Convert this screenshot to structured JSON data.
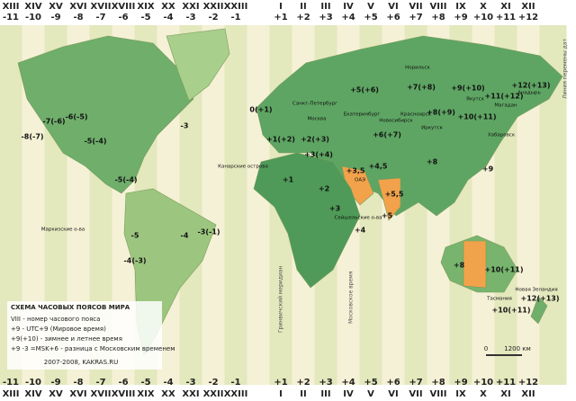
{
  "zones": [
    {
      "roman": "XIII",
      "offset": "-11"
    },
    {
      "roman": "XIV",
      "offset": "-10"
    },
    {
      "roman": "XV",
      "offset": "-9"
    },
    {
      "roman": "XVI",
      "offset": "-8"
    },
    {
      "roman": "XVII",
      "offset": "-7"
    },
    {
      "roman": "XVIII",
      "offset": "-6"
    },
    {
      "roman": "XIX",
      "offset": "-5"
    },
    {
      "roman": "XX",
      "offset": "-4"
    },
    {
      "roman": "XXI",
      "offset": "-3"
    },
    {
      "roman": "XXII",
      "offset": "-2"
    },
    {
      "roman": "XXIII",
      "offset": "-1"
    },
    {
      "roman": null,
      "offset": null
    },
    {
      "roman": "I",
      "offset": "+1"
    },
    {
      "roman": "II",
      "offset": "+2"
    },
    {
      "roman": "III",
      "offset": "+3"
    },
    {
      "roman": "IV",
      "offset": "+4"
    },
    {
      "roman": "V",
      "offset": "+5"
    },
    {
      "roman": "VI",
      "offset": "+6"
    },
    {
      "roman": "VII",
      "offset": "+7"
    },
    {
      "roman": "VIII",
      "offset": "+8"
    },
    {
      "roman": "IX",
      "offset": "+9"
    },
    {
      "roman": "X",
      "offset": "+10"
    },
    {
      "roman": "XI",
      "offset": "+11"
    },
    {
      "roman": "XII",
      "offset": "+12"
    }
  ],
  "map_labels": [
    "-7(-6)",
    "-6(-5)",
    "-8(-7)",
    "-5(-4)",
    "-3",
    "-5(-4)",
    "-5",
    "-4(-3)",
    "-3(-1)",
    "-4",
    "0(+1)",
    "+1(+2)",
    "+2(+3)",
    "+3(+4)",
    "+1",
    "+2",
    "+3",
    "+4",
    "+3,5",
    "+4,5",
    "+5,5",
    "+5",
    "+5(+6)",
    "+6(+7)",
    "+7(+8)",
    "+8(+9)",
    "+9(+10)",
    "+10(+11)",
    "+11(+12)",
    "+12(+13)",
    "+8",
    "+9",
    "+10(+11)",
    "+8",
    "+12(+13)",
    "+10(+11)"
  ],
  "place_names": [
    "Москва",
    "Санкт-Петербург",
    "Екатеринбург",
    "Новосибирск",
    "Красноярск",
    "Иркутск",
    "Норильск",
    "Якутск",
    "Магадан",
    "Хабаровск",
    "Анадырь",
    "ОАЭ",
    "Канарские острова",
    "Сейшельские о-ва",
    "Маркизские о-ва",
    "Новая Зеландия",
    "Тасмания"
  ],
  "vertical_labels": [
    "Гринвичский меридиан",
    "Московское время",
    "Линия перемены дат"
  ],
  "legend": {
    "title": "СХЕМА ЧАСОВЫХ ПОЯСОВ МИРА",
    "lines": [
      "VIII - номер часового пояса",
      "+9 - UTC+9 (Мировое время)",
      "+9(+10) - зимнее и летнее время",
      "+9 -3 =MSK+6 - разница с Московским временем"
    ],
    "credit": "2007-2008, KAKRAS.RU"
  },
  "scale": {
    "start": "0",
    "end": "1200 км"
  }
}
